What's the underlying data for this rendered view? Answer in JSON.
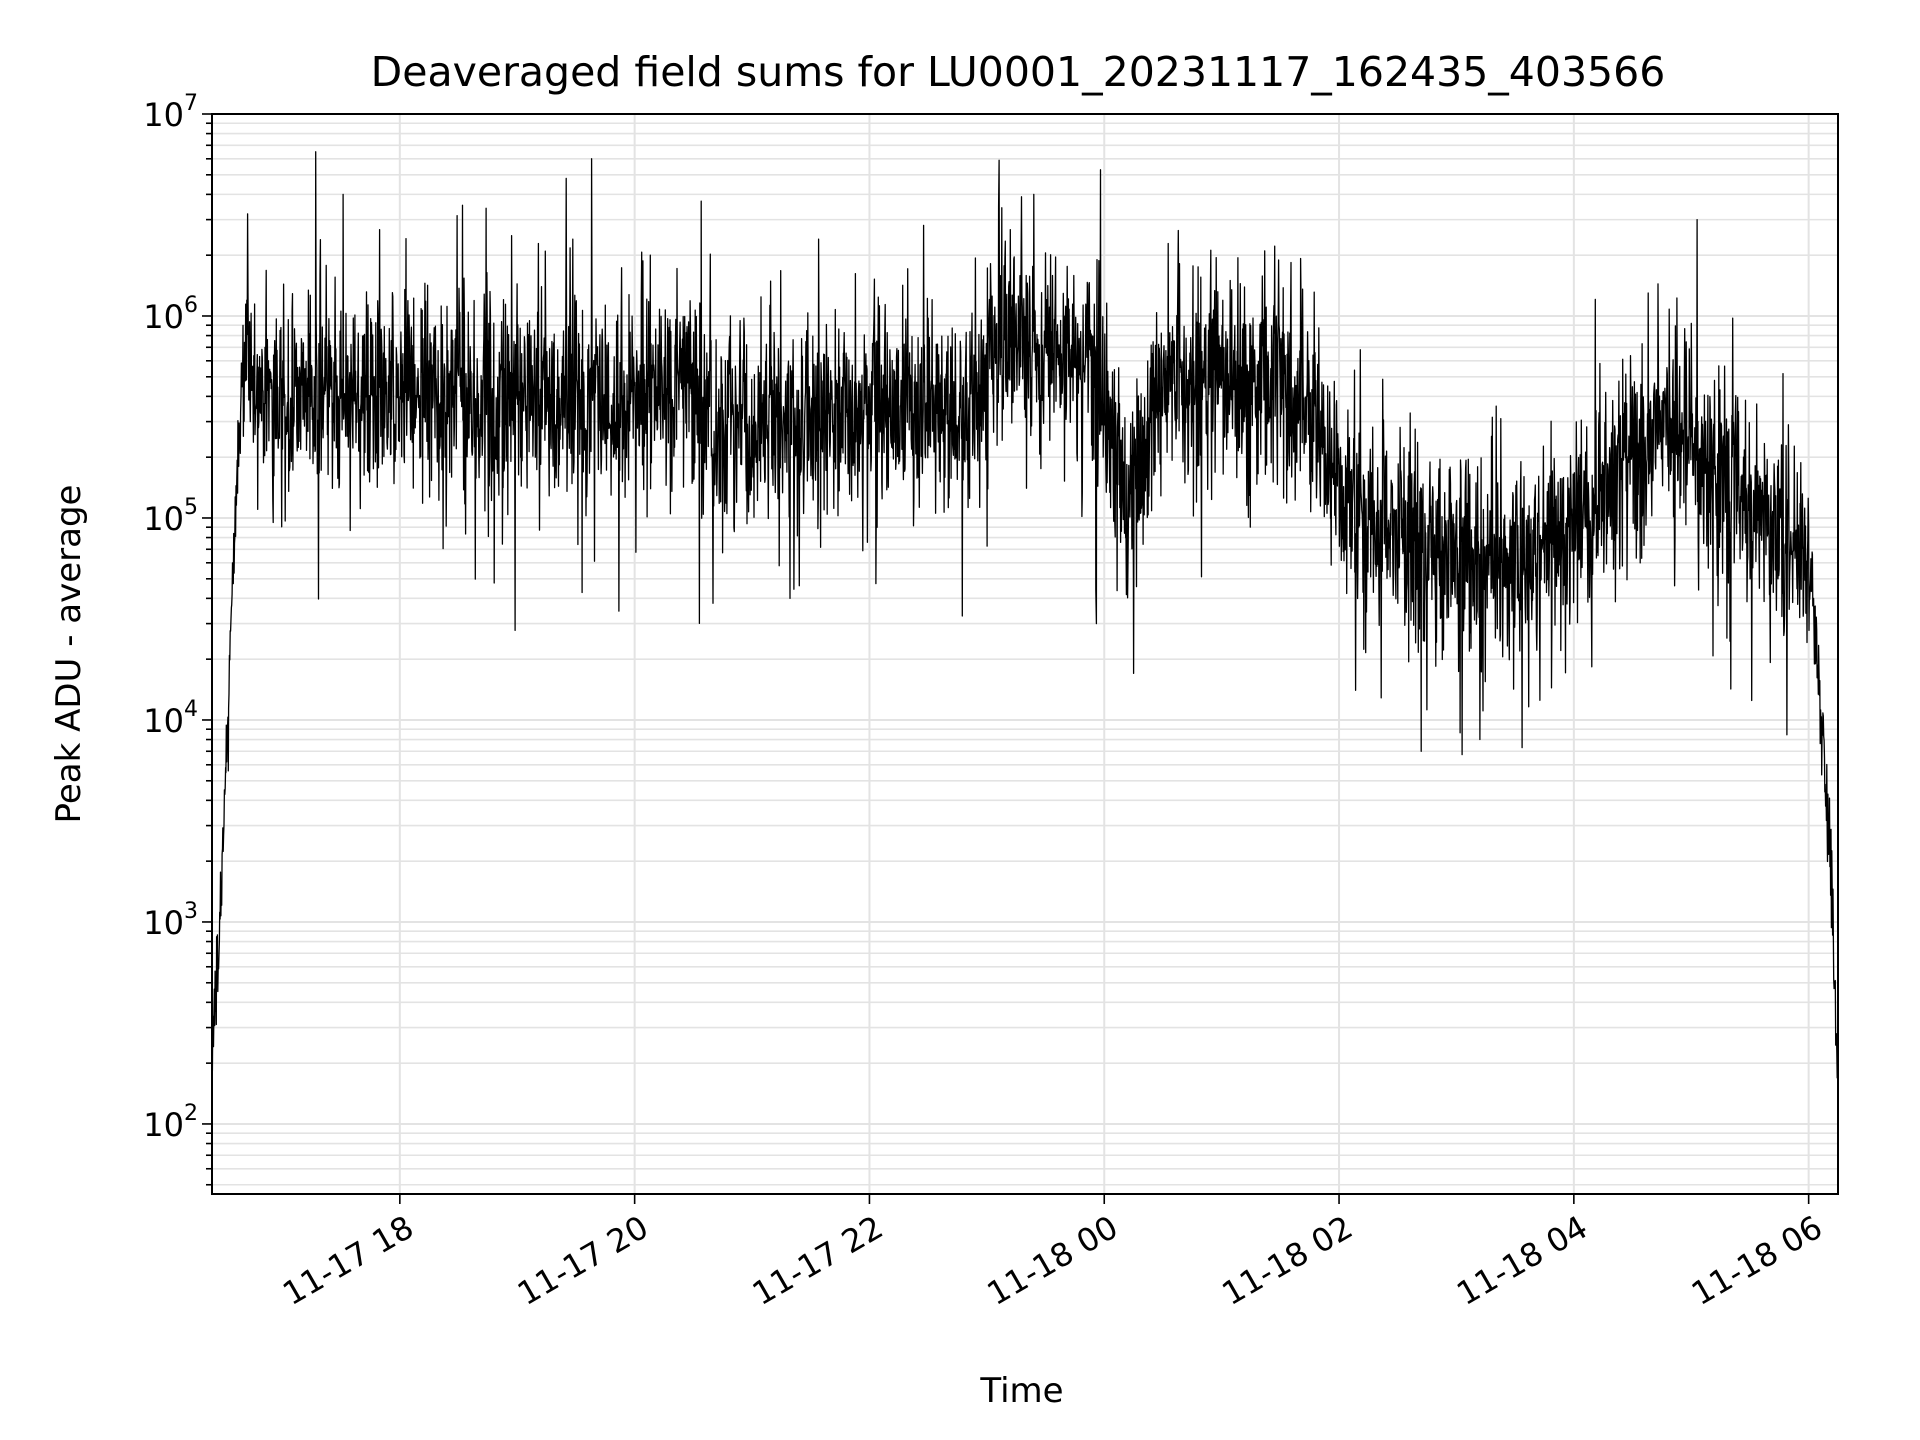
{
  "chart_data": {
    "type": "line",
    "title": "Deaveraged field sums for LU0001_20231117_162435_403566",
    "xlabel": "Time",
    "ylabel": "Peak ADU - average",
    "yscale": "log",
    "grid": true,
    "x_tick_labels": [
      "11-17 18",
      "11-17 20",
      "11-17 22",
      "11-18 00",
      "11-18 02",
      "11-18 04",
      "11-18 06"
    ],
    "y_tick_labels": [
      {
        "base": "10",
        "exp": "2"
      },
      {
        "base": "10",
        "exp": "3"
      },
      {
        "base": "10",
        "exp": "4"
      },
      {
        "base": "10",
        "exp": "5"
      },
      {
        "base": "10",
        "exp": "6"
      },
      {
        "base": "10",
        "exp": "7"
      }
    ],
    "xlim": [
      "2023-11-17 16:24",
      "2023-11-18 06:15"
    ],
    "ylim": [
      45,
      10000000
    ],
    "line_color": "#000000",
    "series": [
      {
        "x": [
          "2023-11-17 16:24",
          "2023-11-17 16:27",
          "2023-11-17 16:30",
          "2023-11-17 16:35",
          "2023-11-17 16:40",
          "2023-11-17 16:45",
          "2023-11-17 16:55",
          "2023-11-17 17:10",
          "2023-11-17 17:30",
          "2023-11-17 17:50",
          "2023-11-17 18:10",
          "2023-11-17 18:30",
          "2023-11-17 19:00",
          "2023-11-17 19:30",
          "2023-11-17 19:55",
          "2023-11-17 20:20",
          "2023-11-17 20:45",
          "2023-11-17 21:15",
          "2023-11-17 21:45",
          "2023-11-17 22:15",
          "2023-11-17 22:45",
          "2023-11-17 23:10",
          "2023-11-17 23:35",
          "2023-11-17 23:55",
          "2023-11-18 00:10",
          "2023-11-18 00:35",
          "2023-11-18 01:00",
          "2023-11-18 01:30",
          "2023-11-18 01:50",
          "2023-11-18 02:15",
          "2023-11-18 02:40",
          "2023-11-18 03:00",
          "2023-11-18 03:30",
          "2023-11-18 04:00",
          "2023-11-18 04:30",
          "2023-11-18 04:50",
          "2023-11-18 05:10",
          "2023-11-18 05:35",
          "2023-11-18 05:55",
          "2023-11-18 06:02",
          "2023-11-18 06:07",
          "2023-11-18 06:12",
          "2023-11-18 06:15"
        ],
        "y": [
          200,
          600,
          3000,
          60000,
          700000,
          450000,
          350000,
          400000,
          380000,
          420000,
          350000,
          390000,
          370000,
          360000,
          330000,
          500000,
          280000,
          300000,
          320000,
          340000,
          310000,
          700000,
          650000,
          600000,
          120000,
          550000,
          520000,
          480000,
          240000,
          90000,
          80000,
          60000,
          55000,
          85000,
          180000,
          300000,
          160000,
          110000,
          70000,
          50000,
          8000,
          1500,
          150
        ]
      }
    ],
    "peaks": {
      "x": [
        "2023-11-17 17:17",
        "2023-11-17 17:31",
        "2023-11-17 19:25",
        "2023-11-17 19:38",
        "2023-11-17 20:34",
        "2023-11-17 23:24",
        "2023-11-17 23:06",
        "2023-11-18 05:03",
        "2023-11-18 02:42",
        "2023-11-18 03:12",
        "2023-11-17 23:56",
        "2023-11-18 00:15",
        "2023-11-17 20:08",
        "2023-11-17 21:34",
        "2023-11-18 04:38",
        "2023-11-18 01:22"
      ],
      "y": [
        6500000,
        4000000,
        4800000,
        6000000,
        3700000,
        4000000,
        3500000,
        3000000,
        7000,
        8000,
        30000,
        17000,
        2000000,
        2400000,
        1300000,
        2100000
      ]
    }
  }
}
